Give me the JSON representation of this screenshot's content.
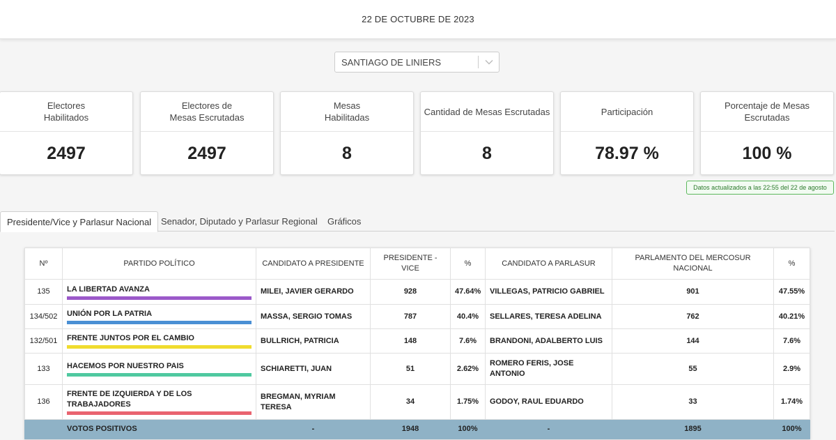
{
  "header": {
    "date": "22 DE OCTUBRE DE 2023"
  },
  "location_select": {
    "value": "SANTIAGO DE LINIERS"
  },
  "stats": [
    {
      "label": "Electores\nHabilitados",
      "value": "2497"
    },
    {
      "label": "Electores de\nMesas Escrutadas",
      "value": "2497"
    },
    {
      "label": "Mesas\nHabilitadas",
      "value": "8"
    },
    {
      "label": "Cantidad de Mesas Escrutadas",
      "value": "8"
    },
    {
      "label": "Participación",
      "value": "78.97 %"
    },
    {
      "label": "Porcentaje de Mesas Escrutadas",
      "value": "100 %"
    }
  ],
  "updated_badge": "Datos actualizados a las 22:55 del 22 de agosto",
  "tabs": [
    {
      "label": "Presidente/Vice y Parlasur Nacional"
    },
    {
      "label": "Senador, Diputado y Parlasur Regional"
    },
    {
      "label": "Gráficos"
    }
  ],
  "table": {
    "headers": {
      "num": "Nº",
      "party": "PARTIDO POLÍTICO",
      "candidate": "CANDIDATO A PRESIDENTE",
      "pres_vice": "PRESIDENTE - VICE",
      "pct1": "%",
      "parlasur_candidate": "CANDIDATO A PARLASUR",
      "parlasur_national": "PARLAMENTO DEL MERCOSUR NACIONAL",
      "pct2": "%"
    },
    "rows": [
      {
        "num": "135",
        "party": "LA LIBERTAD AVANZA",
        "color": "#9b59c9",
        "candidate": "MILEI, JAVIER GERARDO",
        "votes": "928",
        "pct": "47.64%",
        "parlasur_candidate": "VILLEGAS, PATRICIO GABRIEL",
        "parlasur_votes": "901",
        "parlasur_pct": "47.55%"
      },
      {
        "num": "134/502",
        "party": "UNIÓN POR LA PATRIA",
        "color": "#4a8fd4",
        "candidate": "MASSA, SERGIO TOMAS",
        "votes": "787",
        "pct": "40.4%",
        "parlasur_candidate": "SELLARES, TERESA ADELINA",
        "parlasur_votes": "762",
        "parlasur_pct": "40.21%"
      },
      {
        "num": "132/501",
        "party": "FRENTE JUNTOS POR EL CAMBIO",
        "color": "#f0dc2e",
        "candidate": "BULLRICH, PATRICIA",
        "votes": "148",
        "pct": "7.6%",
        "parlasur_candidate": "BRANDONI, ADALBERTO LUIS",
        "parlasur_votes": "144",
        "parlasur_pct": "7.6%"
      },
      {
        "num": "133",
        "party": "HACEMOS POR NUESTRO PAIS",
        "color": "#4fc9a0",
        "candidate": "SCHIARETTI, JUAN",
        "votes": "51",
        "pct": "2.62%",
        "parlasur_candidate": "ROMERO FERIS, JOSE ANTONIO",
        "parlasur_votes": "55",
        "parlasur_pct": "2.9%"
      },
      {
        "num": "136",
        "party": "FRENTE DE IZQUIERDA Y DE LOS TRABAJADORES",
        "color": "#e96470",
        "candidate": "BREGMAN, MYRIAM TERESA",
        "votes": "34",
        "pct": "1.75%",
        "parlasur_candidate": "GODOY, RAUL EDUARDO",
        "parlasur_votes": "33",
        "parlasur_pct": "1.74%"
      }
    ],
    "total": {
      "num": "",
      "label": "VOTOS POSITIVOS",
      "candidate": "-",
      "votes": "1948",
      "pct": "100%",
      "parlasur_candidate": "-",
      "parlasur_votes": "1895",
      "parlasur_pct": "100%"
    }
  }
}
